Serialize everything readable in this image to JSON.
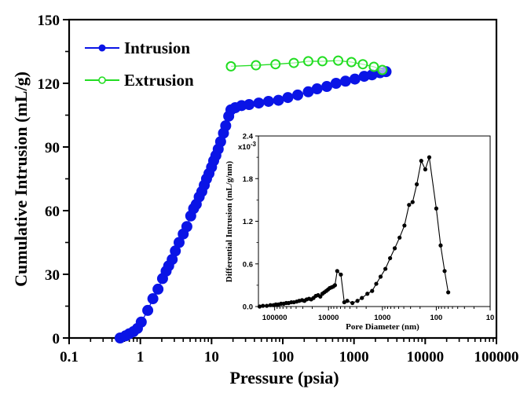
{
  "chart_data": [
    {
      "type": "scatter",
      "id": "main",
      "title": "",
      "xlabel": "Pressure (psia)",
      "ylabel": "Cumulative Intrusion (mL/g)",
      "xscale": "log",
      "xlim": [
        0.1,
        100000
      ],
      "ylim": [
        0,
        150
      ],
      "xticks": [
        0.1,
        1,
        10,
        100,
        1000,
        10000,
        100000
      ],
      "xtick_labels": [
        "0.1",
        "1",
        "10",
        "100",
        "1000",
        "10000",
        "100000"
      ],
      "yticks": [
        0,
        30,
        60,
        90,
        120,
        150
      ],
      "ytick_labels": [
        "0",
        "30",
        "60",
        "90",
        "120",
        "150"
      ],
      "grid": false,
      "legend_position": "top-left",
      "series": [
        {
          "name": "Intrusion",
          "color": "#0a14e6",
          "marker": "filled-circle",
          "x": [
            0.52,
            0.62,
            0.7,
            0.8,
            0.91,
            1.03,
            1.27,
            1.5,
            1.77,
            2.05,
            2.3,
            2.5,
            2.8,
            3.1,
            3.5,
            4.0,
            4.5,
            5.1,
            5.6,
            6.1,
            6.7,
            7.3,
            7.9,
            8.5,
            9.2,
            10,
            10.7,
            11.5,
            12.4,
            13.4,
            14.7,
            15.8,
            17.4,
            18.7,
            21.5,
            26.4,
            33.7,
            46,
            63,
            87,
            118,
            162,
            228,
            303,
            415,
            560,
            760,
            1030,
            1390,
            1790,
            2320,
            2820
          ],
          "y": [
            0,
            1,
            2,
            3,
            4.5,
            7.5,
            13,
            18.5,
            23,
            28,
            31.5,
            34,
            37,
            41,
            45,
            49,
            52.5,
            57.5,
            61,
            63,
            66.5,
            69,
            72,
            75,
            77.5,
            80.5,
            83.5,
            86,
            89,
            92.5,
            96.5,
            100,
            104.5,
            107.5,
            108.5,
            109.5,
            110,
            110.7,
            111.5,
            112,
            113.3,
            114.5,
            116,
            117.4,
            118.5,
            120,
            121,
            122,
            123.3,
            124,
            125,
            125.5
          ]
        },
        {
          "name": "Extrusion",
          "color": "#22dd22",
          "marker": "open-circle",
          "x": [
            18.7,
            42,
            79,
            143,
            228,
            360,
            600,
            920,
            1330,
            1900,
            2500
          ],
          "y": [
            128,
            128.5,
            129,
            129.6,
            130.4,
            130.4,
            130.7,
            130,
            129,
            127.8,
            126.3
          ]
        }
      ]
    },
    {
      "type": "line",
      "id": "inset",
      "title": "",
      "xlabel": "Pore Diameter (nm)",
      "ylabel": "Differential Intrusion (mL/g/nm)",
      "y_multiplier_label": "x10",
      "y_multiplier_exp": "-3",
      "xscale": "log",
      "x_reversed": true,
      "xlim": [
        200000,
        10
      ],
      "ylim": [
        0,
        2.4
      ],
      "xticks": [
        100000,
        10000,
        1000,
        100,
        10
      ],
      "xtick_labels": [
        "100000",
        "10000",
        "1000",
        "100",
        "10"
      ],
      "yticks": [
        0.0,
        0.6,
        1.2,
        1.8,
        2.4
      ],
      "ytick_labels": [
        "0.0",
        "0.6",
        "1.2",
        "1.8",
        "2.4"
      ],
      "grid": false,
      "series": [
        {
          "name": "Differential Intrusion",
          "color": "#000000",
          "marker": "filled-circle",
          "x": [
            190000,
            165000,
            140000,
            120000,
            105000,
            95000,
            85000,
            76000,
            68000,
            61000,
            55000,
            49000,
            44000,
            39000,
            35000,
            31000,
            28000,
            25500,
            23000,
            21000,
            19000,
            17200,
            15600,
            14200,
            13000,
            12000,
            11000,
            10200,
            9500,
            8800,
            8200,
            7600,
            6900,
            5900,
            5100,
            4500,
            3600,
            2900,
            2400,
            1900,
            1550,
            1300,
            1080,
            880,
            720,
            590,
            480,
            390,
            320,
            275,
            230,
            190,
            160,
            135,
            100,
            83,
            70,
            60
          ],
          "y": [
            0.0,
            0.01,
            0.01,
            0.02,
            0.02,
            0.03,
            0.03,
            0.04,
            0.04,
            0.05,
            0.05,
            0.06,
            0.06,
            0.07,
            0.08,
            0.09,
            0.08,
            0.1,
            0.11,
            0.1,
            0.12,
            0.15,
            0.16,
            0.14,
            0.18,
            0.2,
            0.22,
            0.24,
            0.26,
            0.27,
            0.28,
            0.3,
            0.5,
            0.45,
            0.06,
            0.08,
            0.05,
            0.08,
            0.12,
            0.18,
            0.22,
            0.32,
            0.42,
            0.53,
            0.68,
            0.82,
            0.97,
            1.14,
            1.43,
            1.47,
            1.72,
            2.05,
            1.93,
            2.1,
            1.38,
            0.86,
            0.5,
            0.2
          ]
        }
      ]
    }
  ],
  "legend": [
    {
      "label": "Intrusion"
    },
    {
      "label": "Extrusion"
    }
  ]
}
